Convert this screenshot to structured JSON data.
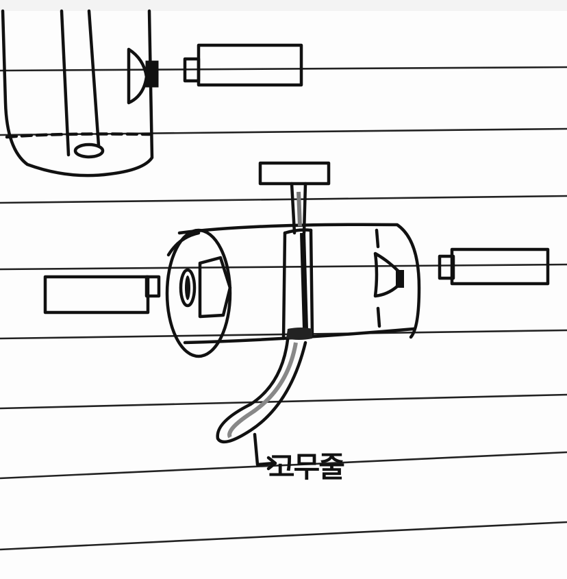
{
  "annotation": {
    "label": "고무줄"
  }
}
